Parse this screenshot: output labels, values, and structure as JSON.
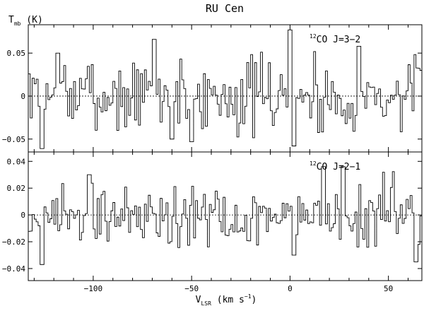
{
  "chart_data": {
    "type": "line",
    "title": "RU Cen",
    "xlabel": {
      "main": "V",
      "sub": "LSR",
      "rest": " (km s",
      "sup": "−1",
      "end": ")"
    },
    "ylabel": {
      "main": "T",
      "sub": "mb",
      "rest": " (K)"
    },
    "xlim": [
      -133,
      67
    ],
    "x_ticks": [
      -100,
      -50,
      0,
      50
    ],
    "x_tick_labels": [
      "−100",
      "−50",
      "0",
      "50"
    ],
    "panels": [
      {
        "label": {
          "sup": "12",
          "text": "CO J=3−2"
        },
        "ylim": [
          -0.065,
          0.083
        ],
        "y_ticks": [
          0.05,
          0,
          -0.05
        ],
        "y_tick_labels": [
          "0.05",
          "0",
          "−0.05"
        ],
        "baseline": 0,
        "noise_rms": 0.022,
        "seed": 7,
        "features": [
          {
            "x": -118,
            "y": 0.05
          },
          {
            "x": -69,
            "y": 0.066
          },
          {
            "x": -60,
            "y": -0.05
          },
          {
            "x": -50,
            "y": -0.053
          },
          {
            "x": 0,
            "y": 0.077
          },
          {
            "x": 2,
            "y": -0.058
          },
          {
            "x": -126,
            "y": -0.061
          },
          {
            "x": 35,
            "y": 0.058
          }
        ]
      },
      {
        "label": {
          "sup": "12",
          "text": "CO J=2−1"
        },
        "ylim": [
          -0.049,
          0.047
        ],
        "y_ticks": [
          0.04,
          0.02,
          0,
          -0.02,
          -0.04
        ],
        "y_tick_labels": [
          "0.04",
          "0.02",
          "0",
          "−0.02",
          "−0.04"
        ],
        "baseline": 0,
        "noise_rms": 0.013,
        "seed": 19,
        "features": [
          {
            "x": 17,
            "y": 0.036
          },
          {
            "x": 27,
            "y": 0.036
          },
          {
            "x": -126,
            "y": -0.037
          },
          {
            "x": 64,
            "y": -0.035
          },
          {
            "x": 2,
            "y": -0.03
          },
          {
            "x": -102,
            "y": 0.03
          }
        ]
      }
    ]
  }
}
